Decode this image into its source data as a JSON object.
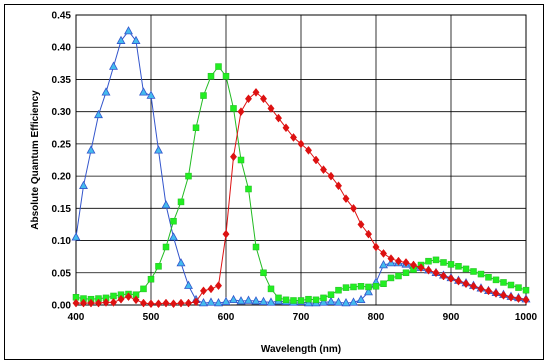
{
  "chart_data": {
    "type": "scatter",
    "title": "",
    "xlabel": "Wavelength (nm)",
    "ylabel": "Absolute Quantum Efficiency",
    "xlim": [
      400,
      1000
    ],
    "ylim": [
      0,
      0.45
    ],
    "grid": true,
    "x_ticks": [
      "400",
      "500",
      "600",
      "700",
      "800",
      "900",
      "1000"
    ],
    "y_ticks": [
      "0.00",
      "0.05",
      "0.10",
      "0.15",
      "0.20",
      "0.25",
      "0.30",
      "0.35",
      "0.40",
      "0.45"
    ],
    "series": [
      {
        "color": "#3355cc",
        "marker": "triangle",
        "marker_fill": "#44bbee",
        "points": [
          [
            400,
            0.105
          ],
          [
            410,
            0.185
          ],
          [
            420,
            0.24
          ],
          [
            430,
            0.295
          ],
          [
            440,
            0.33
          ],
          [
            450,
            0.37
          ],
          [
            460,
            0.41
          ],
          [
            470,
            0.425
          ],
          [
            480,
            0.41
          ],
          [
            490,
            0.33
          ],
          [
            500,
            0.325
          ],
          [
            510,
            0.24
          ],
          [
            520,
            0.155
          ],
          [
            530,
            0.105
          ],
          [
            540,
            0.065
          ],
          [
            550,
            0.03
          ],
          [
            560,
            0.008
          ],
          [
            570,
            0.003
          ],
          [
            580,
            0.004
          ],
          [
            590,
            0.003
          ],
          [
            600,
            0.005
          ],
          [
            610,
            0.008
          ],
          [
            620,
            0.006
          ],
          [
            630,
            0.007
          ],
          [
            640,
            0.006
          ],
          [
            650,
            0.005
          ],
          [
            660,
            0.004
          ],
          [
            670,
            0.006
          ],
          [
            680,
            0.005
          ],
          [
            690,
            0.004
          ],
          [
            700,
            0.005
          ],
          [
            710,
            0.003
          ],
          [
            720,
            0.003
          ],
          [
            730,
            0.004
          ],
          [
            740,
            0.005
          ],
          [
            750,
            0.004
          ],
          [
            760,
            0.003
          ],
          [
            770,
            0.004
          ],
          [
            780,
            0.008
          ],
          [
            790,
            0.02
          ],
          [
            800,
            0.035
          ],
          [
            810,
            0.062
          ],
          [
            820,
            0.065
          ],
          [
            830,
            0.065
          ],
          [
            840,
            0.063
          ],
          [
            850,
            0.061
          ],
          [
            860,
            0.058
          ],
          [
            870,
            0.054
          ],
          [
            880,
            0.05
          ],
          [
            890,
            0.046
          ],
          [
            900,
            0.042
          ],
          [
            910,
            0.038
          ],
          [
            920,
            0.034
          ],
          [
            930,
            0.03
          ],
          [
            940,
            0.026
          ],
          [
            950,
            0.022
          ],
          [
            960,
            0.019
          ],
          [
            970,
            0.016
          ],
          [
            980,
            0.013
          ],
          [
            990,
            0.011
          ],
          [
            1000,
            0.009
          ]
        ]
      },
      {
        "color": "#22bb22",
        "marker": "square",
        "marker_fill": "#22ee22",
        "points": [
          [
            400,
            0.012
          ],
          [
            410,
            0.01
          ],
          [
            420,
            0.009
          ],
          [
            430,
            0.01
          ],
          [
            440,
            0.011
          ],
          [
            450,
            0.014
          ],
          [
            460,
            0.016
          ],
          [
            470,
            0.017
          ],
          [
            480,
            0.016
          ],
          [
            490,
            0.025
          ],
          [
            500,
            0.04
          ],
          [
            510,
            0.06
          ],
          [
            520,
            0.09
          ],
          [
            530,
            0.13
          ],
          [
            540,
            0.16
          ],
          [
            550,
            0.2
          ],
          [
            560,
            0.275
          ],
          [
            570,
            0.325
          ],
          [
            580,
            0.355
          ],
          [
            590,
            0.37
          ],
          [
            600,
            0.355
          ],
          [
            610,
            0.305
          ],
          [
            620,
            0.225
          ],
          [
            630,
            0.18
          ],
          [
            640,
            0.09
          ],
          [
            650,
            0.05
          ],
          [
            660,
            0.025
          ],
          [
            670,
            0.011
          ],
          [
            680,
            0.008
          ],
          [
            690,
            0.007
          ],
          [
            700,
            0.007
          ],
          [
            710,
            0.009
          ],
          [
            720,
            0.008
          ],
          [
            730,
            0.011
          ],
          [
            740,
            0.016
          ],
          [
            750,
            0.023
          ],
          [
            760,
            0.027
          ],
          [
            770,
            0.028
          ],
          [
            780,
            0.029
          ],
          [
            790,
            0.028
          ],
          [
            800,
            0.029
          ],
          [
            810,
            0.033
          ],
          [
            820,
            0.042
          ],
          [
            830,
            0.045
          ],
          [
            840,
            0.05
          ],
          [
            850,
            0.055
          ],
          [
            860,
            0.062
          ],
          [
            870,
            0.068
          ],
          [
            880,
            0.07
          ],
          [
            890,
            0.066
          ],
          [
            900,
            0.063
          ],
          [
            910,
            0.06
          ],
          [
            920,
            0.056
          ],
          [
            930,
            0.052
          ],
          [
            940,
            0.048
          ],
          [
            950,
            0.043
          ],
          [
            960,
            0.039
          ],
          [
            970,
            0.035
          ],
          [
            980,
            0.031
          ],
          [
            990,
            0.027
          ],
          [
            1000,
            0.023
          ]
        ]
      },
      {
        "color": "#dd1111",
        "marker": "diamond",
        "marker_fill": "#dd1111",
        "points": [
          [
            400,
            0.003
          ],
          [
            410,
            0.003
          ],
          [
            420,
            0.003
          ],
          [
            430,
            0.003
          ],
          [
            440,
            0.004
          ],
          [
            450,
            0.004
          ],
          [
            460,
            0.009
          ],
          [
            470,
            0.013
          ],
          [
            480,
            0.008
          ],
          [
            490,
            0.003
          ],
          [
            500,
            0.002
          ],
          [
            510,
            0.002
          ],
          [
            520,
            0.003
          ],
          [
            530,
            0.002
          ],
          [
            540,
            0.003
          ],
          [
            550,
            0.003
          ],
          [
            560,
            0.005
          ],
          [
            570,
            0.022
          ],
          [
            580,
            0.025
          ],
          [
            590,
            0.03
          ],
          [
            600,
            0.11
          ],
          [
            610,
            0.23
          ],
          [
            620,
            0.3
          ],
          [
            630,
            0.32
          ],
          [
            640,
            0.33
          ],
          [
            650,
            0.32
          ],
          [
            660,
            0.305
          ],
          [
            670,
            0.29
          ],
          [
            680,
            0.275
          ],
          [
            690,
            0.26
          ],
          [
            700,
            0.25
          ],
          [
            710,
            0.24
          ],
          [
            720,
            0.225
          ],
          [
            730,
            0.21
          ],
          [
            740,
            0.2
          ],
          [
            750,
            0.185
          ],
          [
            760,
            0.165
          ],
          [
            770,
            0.15
          ],
          [
            780,
            0.125
          ],
          [
            790,
            0.11
          ],
          [
            800,
            0.09
          ],
          [
            810,
            0.08
          ],
          [
            820,
            0.072
          ],
          [
            830,
            0.068
          ],
          [
            840,
            0.066
          ],
          [
            850,
            0.062
          ],
          [
            860,
            0.058
          ],
          [
            870,
            0.054
          ],
          [
            880,
            0.05
          ],
          [
            890,
            0.045
          ],
          [
            900,
            0.041
          ],
          [
            910,
            0.037
          ],
          [
            920,
            0.033
          ],
          [
            930,
            0.029
          ],
          [
            940,
            0.025
          ],
          [
            950,
            0.022
          ],
          [
            960,
            0.018
          ],
          [
            970,
            0.015
          ],
          [
            980,
            0.012
          ],
          [
            990,
            0.01
          ],
          [
            1000,
            0.008
          ]
        ]
      }
    ]
  }
}
